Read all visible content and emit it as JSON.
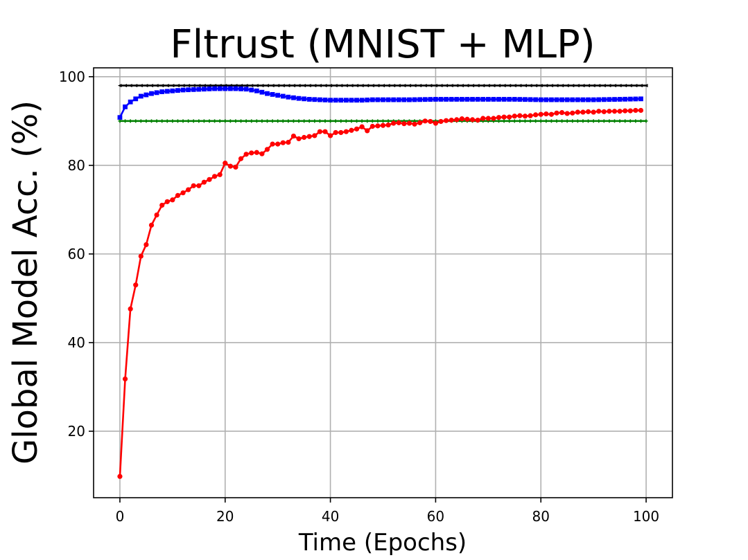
{
  "chart_data": {
    "type": "line",
    "title": "Fltrust (MNIST + MLP)",
    "xlabel": "Time (Epochs)",
    "ylabel": "Global Model Acc. (%)",
    "xlim": [
      -5,
      105
    ],
    "ylim": [
      5,
      102
    ],
    "xticks": [
      0,
      20,
      40,
      60,
      80,
      100
    ],
    "yticks": [
      20,
      40,
      60,
      80,
      100
    ],
    "grid": true,
    "legend": "none",
    "series": [
      {
        "color": "#000000",
        "marker": "triangle-left",
        "x": [
          0,
          100
        ],
        "values": [
          98,
          98
        ],
        "marker_step": 1
      },
      {
        "color": "#0000ff",
        "marker": "square",
        "x": [
          0,
          1,
          2,
          3,
          4,
          5,
          6,
          7,
          8,
          9,
          10,
          12,
          14,
          16,
          18,
          20,
          22,
          24,
          26,
          28,
          30,
          32,
          34,
          36,
          38,
          40,
          42,
          44,
          46,
          48,
          50,
          52,
          55,
          60,
          65,
          70,
          75,
          80,
          85,
          90,
          95,
          99
        ],
        "values": [
          90.8,
          93.2,
          94.3,
          95.0,
          95.6,
          95.9,
          96.2,
          96.4,
          96.6,
          96.7,
          96.8,
          97.0,
          97.1,
          97.2,
          97.3,
          97.3,
          97.3,
          97.2,
          96.8,
          96.2,
          95.8,
          95.4,
          95.1,
          94.9,
          94.8,
          94.7,
          94.7,
          94.7,
          94.7,
          94.8,
          94.8,
          94.8,
          94.8,
          94.9,
          94.9,
          94.9,
          94.9,
          94.8,
          94.8,
          94.8,
          94.9,
          95.0
        ],
        "marker_step": 1
      },
      {
        "color": "#008000",
        "marker": "plus",
        "x": [
          0,
          100
        ],
        "values": [
          90,
          90
        ],
        "marker_step": 1
      },
      {
        "color": "#ff0000",
        "marker": "circle",
        "x": [
          0,
          1,
          2,
          3,
          4,
          5,
          6,
          7,
          8,
          9,
          10,
          11,
          12,
          13,
          14,
          15,
          16,
          17,
          18,
          19,
          20,
          21,
          22,
          23,
          24,
          25,
          26,
          27,
          28,
          29,
          30,
          31,
          32,
          33,
          34,
          35,
          36,
          37,
          38,
          39,
          40,
          41,
          42,
          43,
          44,
          45,
          46,
          47,
          48,
          49,
          50,
          51,
          52,
          53,
          54,
          55,
          56,
          57,
          58,
          59,
          60,
          61,
          62,
          63,
          64,
          65,
          66,
          67,
          68,
          69,
          70,
          71,
          72,
          73,
          74,
          75,
          76,
          77,
          78,
          79,
          80,
          81,
          82,
          83,
          84,
          85,
          86,
          87,
          88,
          89,
          90,
          91,
          92,
          93,
          94,
          95,
          96,
          97,
          98,
          99
        ],
        "values": [
          9.8,
          31.8,
          47.6,
          53.0,
          59.5,
          62.1,
          66.5,
          68.8,
          71.0,
          71.8,
          72.2,
          73.2,
          73.8,
          74.5,
          75.4,
          75.4,
          76.2,
          76.8,
          77.5,
          77.9,
          80.5,
          79.8,
          79.6,
          81.5,
          82.5,
          82.8,
          82.9,
          82.6,
          83.6,
          84.8,
          84.8,
          85.1,
          85.2,
          86.6,
          86.0,
          86.3,
          86.5,
          86.7,
          87.6,
          87.6,
          86.7,
          87.4,
          87.4,
          87.6,
          87.9,
          88.2,
          88.7,
          87.8,
          88.8,
          88.9,
          89.0,
          89.1,
          89.5,
          89.6,
          89.4,
          89.5,
          89.3,
          89.6,
          90.0,
          89.9,
          89.5,
          89.9,
          90.1,
          90.2,
          90.3,
          90.5,
          90.4,
          90.3,
          90.2,
          90.6,
          90.6,
          90.6,
          90.8,
          90.9,
          90.9,
          91.1,
          91.2,
          91.1,
          91.2,
          91.4,
          91.5,
          91.6,
          91.5,
          91.8,
          91.9,
          91.7,
          91.8,
          92.0,
          92.0,
          92.1,
          92.0,
          92.2,
          92.1,
          92.2,
          92.2,
          92.2,
          92.3,
          92.3,
          92.4,
          92.4
        ],
        "marker_step": 1
      }
    ]
  }
}
